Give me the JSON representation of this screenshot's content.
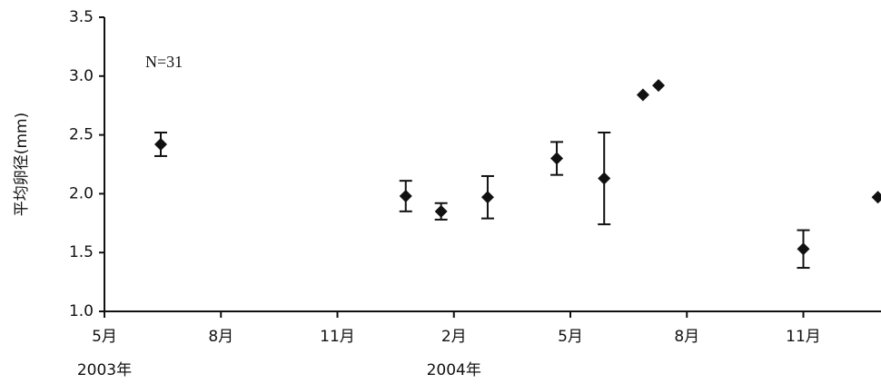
{
  "chart_data": {
    "type": "scatter",
    "y_label": "平均卵径(mm)",
    "annotation": "N=31",
    "x": [
      1.45,
      7.76,
      8.67,
      9.87,
      11.65,
      12.87,
      13.87,
      14.27,
      18.0,
      19.92
    ],
    "series": [
      {
        "color": "#111111",
        "values": [
          2.42,
          1.98,
          1.85,
          1.97,
          2.3,
          2.13,
          2.84,
          2.92,
          1.53,
          1.97
        ],
        "errors": [
          0.1,
          0.13,
          0.07,
          0.18,
          0.14,
          0.39,
          null,
          null,
          0.16,
          null
        ]
      }
    ],
    "xlim": [
      0,
      20
    ],
    "xticks": [
      {
        "value": 0,
        "label": "5月"
      },
      {
        "value": 3,
        "label": "8月"
      },
      {
        "value": 6,
        "label": "11月"
      },
      {
        "value": 9,
        "label": "2月"
      },
      {
        "value": 12,
        "label": "5月"
      },
      {
        "value": 15,
        "label": "8月"
      },
      {
        "value": 18,
        "label": "11月"
      }
    ],
    "year_labels": [
      {
        "value": 0,
        "label": "2003年"
      },
      {
        "value": 9,
        "label": "2004年"
      }
    ],
    "ylim": [
      1.0,
      3.5
    ],
    "yticks": [
      {
        "value": 1,
        "label": "1.0"
      },
      1.5,
      {
        "value": 2,
        "label": "2.0"
      },
      2.5,
      {
        "value": 3,
        "label": "3.0"
      },
      3.5
    ],
    "grid": false
  }
}
